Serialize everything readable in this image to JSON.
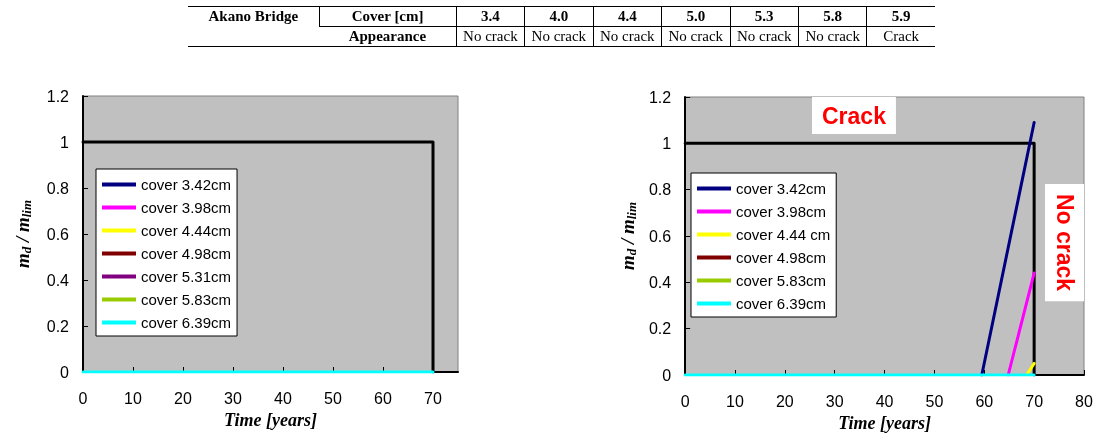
{
  "chart_data": [
    {
      "type": "other",
      "title": "Akano Bridge",
      "categories": [
        "3.4",
        "4.0",
        "4.4",
        "5.0",
        "5.3",
        "5.8",
        "5.9"
      ],
      "y_categories": [
        "Cover [cm]",
        "Appearance"
      ],
      "cell_labels": [
        [
          "No crack",
          "No crack",
          "No crack",
          "No crack",
          "No crack",
          "No crack",
          "Crack"
        ]
      ]
    },
    {
      "type": "line",
      "xlabel": "Time [years]",
      "ylabel": "m$_{d}$ / m$_{lim}$",
      "xlim": [
        0,
        75
      ],
      "xticks": [
        0,
        10,
        20,
        30,
        40,
        50,
        60,
        70
      ],
      "ylim": [
        0,
        1.2
      ],
      "yticks": [
        0,
        0.2,
        0.4,
        0.6,
        0.8,
        1,
        1.2
      ],
      "grid": false,
      "legend": "left",
      "marker": "none",
      "line_style": "solid",
      "series": [
        {
          "color": "#000000",
          "x": [
            0,
            70,
            70
          ],
          "values": [
            1,
            1,
            0
          ]
        },
        {
          "name": "cover 3.42cm",
          "color": "#000080"
        },
        {
          "name": "cover 3.98cm",
          "color": "#ff00ff"
        },
        {
          "name": "cover 4.44cm",
          "color": "#ffff00"
        },
        {
          "name": "cover 4.98cm",
          "color": "#800000"
        },
        {
          "name": "cover 5.31cm",
          "color": "#800080"
        },
        {
          "name": "cover 5.83cm",
          "color": "#99cc00"
        },
        {
          "name": "cover 6.39cm",
          "color": "#00ffff",
          "x": [
            0,
            70
          ],
          "values": [
            0,
            0
          ]
        }
      ]
    },
    {
      "type": "line",
      "xlabel": "Time [years]",
      "ylabel": "m$_{d}$ / m$_{lim}$",
      "xlim": [
        0,
        80
      ],
      "xticks": [
        0,
        10,
        20,
        30,
        40,
        50,
        60,
        70,
        80
      ],
      "ylim": [
        0,
        1.2
      ],
      "yticks": [
        0,
        0.2,
        0.4,
        0.6,
        0.8,
        1,
        1.2
      ],
      "grid": false,
      "legend": "left",
      "marker": "none",
      "line_style": "solid",
      "annotations": [
        "Crack",
        "No crack"
      ],
      "series": [
        {
          "color": "#000000",
          "x": [
            0,
            70,
            70
          ],
          "values": [
            1,
            1,
            0
          ]
        },
        {
          "name": "cover 3.42cm",
          "color": "#000080",
          "x": [
            59.5,
            70
          ],
          "values": [
            0,
            1.09
          ]
        },
        {
          "name": "cover 3.98cm",
          "color": "#ff00ff",
          "x": [
            64.8,
            70
          ],
          "values": [
            0,
            0.44
          ]
        },
        {
          "name": "cover 4.44 cm",
          "color": "#ffff00",
          "x": [
            68.5,
            70
          ],
          "values": [
            0,
            0.05
          ]
        },
        {
          "name": "cover 4.98cm",
          "color": "#800000"
        },
        {
          "name": "cover 5.83cm",
          "color": "#99cc00"
        },
        {
          "name": "cover 6.39cm",
          "color": "#00ffff",
          "x": [
            0,
            70
          ],
          "values": [
            0,
            0
          ]
        }
      ]
    }
  ]
}
